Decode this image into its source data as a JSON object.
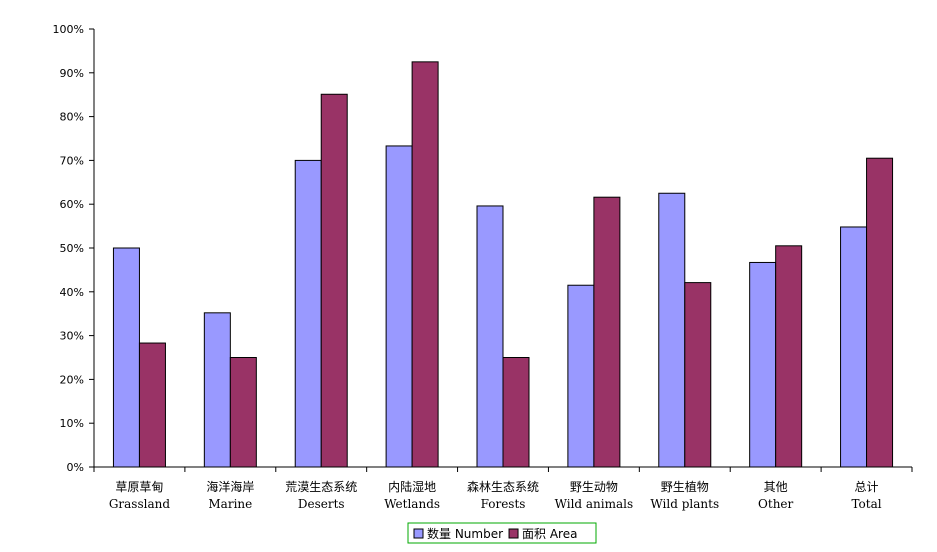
{
  "chart_data": {
    "type": "bar",
    "categories": [
      {
        "zh": "草原草甸",
        "en": "Grassland"
      },
      {
        "zh": "海洋海岸",
        "en": "Marine"
      },
      {
        "zh": "荒漠生态系统",
        "en": "Deserts"
      },
      {
        "zh": "内陆湿地",
        "en": "Wetlands"
      },
      {
        "zh": "森林生态系统",
        "en": "Forests"
      },
      {
        "zh": "野生动物",
        "en": "Wild animals"
      },
      {
        "zh": "野生植物",
        "en": "Wild plants"
      },
      {
        "zh": "其他",
        "en": "Other"
      },
      {
        "zh": "总计",
        "en": "Total"
      }
    ],
    "series": [
      {
        "name": "数量 Number",
        "color": "#9999ff",
        "values": [
          50,
          35.2,
          70,
          73.3,
          59.6,
          41.5,
          62.5,
          46.7,
          54.8
        ]
      },
      {
        "name": "面积 Area",
        "color": "#993366",
        "values": [
          28.3,
          25,
          85.1,
          92.5,
          25,
          61.6,
          42.1,
          50.5,
          70.5
        ]
      }
    ],
    "yticks": [
      "0%",
      "10%",
      "20%",
      "30%",
      "40%",
      "50%",
      "60%",
      "70%",
      "80%",
      "90%",
      "100%"
    ],
    "ylim": [
      0,
      100
    ],
    "legend_position": "bottom",
    "legend_border_color": "#00aa00"
  }
}
